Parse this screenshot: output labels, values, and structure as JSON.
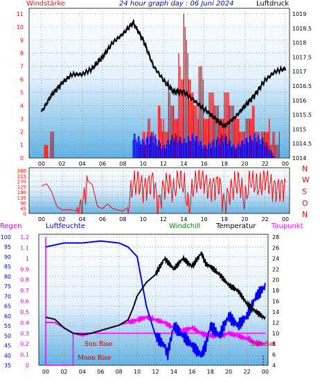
{
  "header": {
    "title": "24 hour graph day : 06 Juni 2024",
    "left_label": "Windstärke",
    "right_label": "Luftdruck"
  },
  "panel2": {
    "compass": [
      "N",
      "W",
      "S",
      "O",
      "N"
    ]
  },
  "panel3": {
    "labels": {
      "regen": "Regen",
      "luftfeuchte": "Luftfeuchte",
      "windchill": "Windchill",
      "temperatur": "Temperatur",
      "taupunkt": "Taupunkt"
    },
    "annotations": {
      "sun_rise": "Sun Rise",
      "moon_rise": "Moon Rise",
      "sun_set": "Sun Set"
    }
  },
  "colors": {
    "wind": "#ff0000",
    "pressure": "#000000",
    "gust": "#0000ff",
    "humidity": "#0000ff",
    "temperature": "#000000",
    "dewpoint": "#ff00ff",
    "rain": "#ff00ff",
    "windchill": "#008000",
    "title": "#0000cc"
  },
  "chart_data": [
    {
      "type": "line",
      "title": "24 hour graph day : 06 Juni 2024",
      "x_ticks": [
        "00",
        "02",
        "04",
        "06",
        "08",
        "10",
        "12",
        "14",
        "16",
        "18",
        "20",
        "22",
        "00"
      ],
      "left_axis": {
        "label": "Windstärke",
        "range": [
          0,
          11
        ],
        "ticks": [
          "0",
          "1",
          "2",
          "3",
          "4",
          "5",
          "6",
          "7",
          "8",
          "9",
          "10",
          "11"
        ]
      },
      "right_axis": {
        "label": "Luftdruck",
        "range": [
          1014,
          1019
        ],
        "ticks": [
          "1014",
          "1014.5",
          "1015",
          "1015.5",
          "1016",
          "1016.5",
          "1017",
          "1017.5",
          "1018",
          "1018.5",
          "1019"
        ]
      },
      "series": [
        {
          "name": "Luftdruck",
          "axis": "right",
          "x": [
            0,
            1,
            2,
            3,
            4,
            5,
            6,
            7,
            8,
            9,
            10,
            11,
            12,
            13,
            14,
            15,
            16,
            17,
            18,
            19,
            20,
            21,
            22,
            23,
            24
          ],
          "y": [
            1015.6,
            1016.2,
            1016.6,
            1016.9,
            1016.9,
            1017.1,
            1017.5,
            1018.0,
            1018.3,
            1018.7,
            1018.1,
            1017.2,
            1016.7,
            1016.3,
            1016.3,
            1016.0,
            1015.7,
            1015.4,
            1015.1,
            1015.4,
            1015.8,
            1016.2,
            1016.7,
            1017.0,
            1017.1
          ]
        },
        {
          "name": "Windstärke",
          "axis": "left",
          "x": [
            0,
            0.3,
            0.6,
            0.9,
            1.2,
            8.9,
            9.5,
            10.0,
            10.5,
            11.0,
            11.5,
            12.0,
            12.5,
            13.0,
            13.5,
            14.0,
            14.5,
            15.0,
            15.5,
            16.0,
            16.5,
            17.0,
            17.5,
            18.0,
            18.5,
            19.0,
            19.5,
            20.0,
            20.5,
            21.0,
            21.5,
            22.0,
            22.5,
            23.0,
            23.5,
            24.0
          ],
          "y": [
            0,
            2,
            0,
            2,
            0,
            0,
            2,
            3,
            4,
            2,
            5,
            3,
            6,
            4,
            8,
            11,
            6,
            4,
            7,
            3,
            5,
            4,
            3,
            5,
            4,
            3,
            2,
            3,
            4,
            2,
            2,
            3,
            2,
            2,
            0,
            0
          ]
        },
        {
          "name": "Gust",
          "axis": "left",
          "x": [
            9,
            10,
            11,
            12,
            13,
            14,
            15,
            16,
            17,
            18,
            19,
            20,
            21,
            22,
            23
          ],
          "y": [
            2,
            1.5,
            2,
            1,
            2,
            1.5,
            2,
            1,
            1.5,
            2,
            1,
            1.5,
            2,
            1.5,
            0
          ]
        }
      ]
    },
    {
      "type": "line",
      "x_ticks": [
        "00",
        "02",
        "04",
        "06",
        "08",
        "10",
        "12",
        "14",
        "16",
        "18",
        "20",
        "22",
        "00"
      ],
      "left_axis": {
        "range": [
          0,
          360
        ],
        "ticks": [
          "0",
          "45",
          "90",
          "135",
          "180",
          "225",
          "270",
          "315",
          "360"
        ]
      },
      "series": [
        {
          "name": "",
          "x": [
            0,
            0.5,
            1.0,
            1.5,
            2.0,
            2.5,
            3.0,
            3.5,
            4.0,
            4.5,
            5.0,
            5.5,
            6.0,
            6.5,
            7.0,
            7.5,
            8.0,
            8.5,
            9.0,
            9.5,
            10.0,
            10.5,
            11.0,
            11.5,
            12.0,
            12.5,
            13.0,
            13.5,
            14.0,
            14.5,
            15.0,
            15.5,
            16.0,
            16.5,
            17.0,
            17.5,
            18.0,
            18.5,
            19.0,
            19.5,
            20.0,
            20.5,
            21.0,
            21.5,
            22.0,
            22.5,
            23.0,
            23.5,
            24.0
          ],
          "y": [
            230,
            250,
            180,
            60,
            30,
            30,
            30,
            20,
            40,
            280,
            240,
            60,
            40,
            80,
            40,
            30,
            20,
            50,
            250,
            270,
            200,
            240,
            280,
            60,
            220,
            260,
            180,
            300,
            240,
            40,
            250,
            290,
            280,
            200,
            230,
            260,
            60,
            180,
            240,
            260,
            90,
            290,
            250,
            220,
            300,
            240,
            200,
            220,
            220
          ]
        }
      ]
    },
    {
      "type": "line",
      "x_ticks": [
        "00",
        "02",
        "04",
        "06",
        "08",
        "10",
        "12",
        "14",
        "16",
        "18",
        "20",
        "22",
        "00"
      ],
      "axes": {
        "regen": {
          "range": [
            0,
            1.2
          ],
          "ticks": [
            "0",
            "0.1",
            "0.2",
            "0.3",
            "0.4",
            "0.5",
            "0.6",
            "0.7",
            "0.8",
            "0.9",
            "1",
            "1.1",
            "1.2"
          ]
        },
        "luftfeuchte": {
          "range": [
            35,
            100
          ],
          "ticks": [
            "35",
            "40",
            "45",
            "50",
            "55",
            "60",
            "65",
            "70",
            "75",
            "80",
            "85",
            "90",
            "95",
            "100"
          ]
        },
        "temperatur": {
          "range": [
            4,
            28
          ],
          "ticks": [
            "4",
            "6",
            "8",
            "10",
            "12",
            "14",
            "16",
            "18",
            "20",
            "22",
            "24",
            "26",
            "28"
          ]
        }
      },
      "series": [
        {
          "name": "Luftfeuchte",
          "axis": "luftfeuchte",
          "x": [
            0,
            1,
            2,
            3,
            4,
            5,
            6,
            7,
            8,
            9,
            10,
            11,
            12,
            13,
            13.3,
            14,
            15,
            16,
            17,
            17.5,
            18,
            19,
            20,
            21,
            22,
            23,
            24
          ],
          "y": [
            95,
            96,
            97,
            97,
            97,
            97.5,
            98,
            97.5,
            97,
            95,
            90,
            65,
            50,
            45,
            40,
            55,
            50,
            45,
            40,
            45,
            55,
            50,
            60,
            55,
            60,
            70,
            75
          ]
        },
        {
          "name": "Temperatur",
          "axis": "temperatur",
          "x": [
            0,
            1,
            2,
            3,
            4,
            5,
            6,
            7,
            8,
            9,
            9.5,
            10,
            11,
            12,
            13,
            14,
            15,
            16,
            17,
            17.5,
            18,
            19,
            20,
            21,
            22,
            23,
            24
          ],
          "y": [
            13,
            12.6,
            11,
            10,
            9.8,
            10,
            10.5,
            11,
            11.5,
            12.5,
            14.5,
            17,
            19.5,
            21,
            24,
            22,
            24,
            22.5,
            25,
            23,
            22.5,
            21,
            19,
            18,
            15.5,
            14,
            12.8
          ]
        },
        {
          "name": "Taupunkt",
          "axis": "temperatur",
          "x": [
            0,
            1,
            2,
            3,
            4,
            5,
            6,
            7,
            8,
            9,
            10,
            11,
            12,
            13,
            14,
            15,
            16,
            17,
            18,
            19,
            20,
            21,
            22,
            23,
            24
          ],
          "y": [
            12,
            12,
            11,
            10,
            9.5,
            10,
            10.5,
            11,
            11.5,
            12,
            12.5,
            13,
            12.5,
            12,
            11,
            10.5,
            11,
            10,
            9.5,
            9.5,
            10,
            9.5,
            9,
            8.2,
            8
          ]
        },
        {
          "name": "Regen",
          "axis": "regen",
          "x": [
            0,
            0,
            3,
            3,
            24
          ],
          "y": [
            1.2,
            0,
            0,
            0.3,
            0.3
          ]
        }
      ]
    }
  ]
}
